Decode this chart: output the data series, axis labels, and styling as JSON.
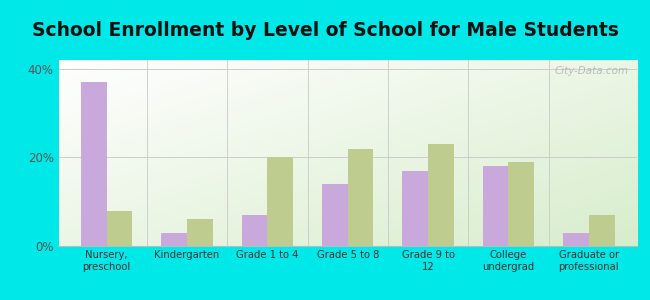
{
  "title": "School Enrollment by Level of School for Male Students",
  "categories": [
    "Nursery,\npreschool",
    "Kindergarten",
    "Grade 1 to 4",
    "Grade 5 to 8",
    "Grade 9 to\n12",
    "College\nundergrad",
    "Graduate or\nprofessional"
  ],
  "east_freehold": [
    37,
    3,
    7,
    14,
    17,
    18,
    3
  ],
  "new_jersey": [
    8,
    6,
    20,
    22,
    23,
    19,
    7
  ],
  "ylim": [
    0,
    42
  ],
  "yticks": [
    0,
    20,
    40
  ],
  "ytick_labels": [
    "0%",
    "20%",
    "40%"
  ],
  "bar_color_ef": "#c9a8dc",
  "bar_color_nj": "#bfcc90",
  "background_outer": "#00e8e8",
  "background_plot_top": "#ffffff",
  "background_plot_bottom": "#d8edcc",
  "bar_width": 0.32,
  "title_fontsize": 13.5,
  "watermark": "City-Data.com"
}
